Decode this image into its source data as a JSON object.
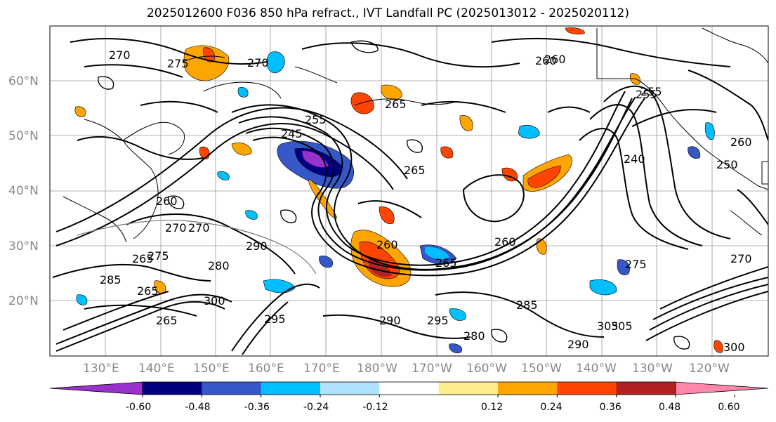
{
  "title": "2025012600 F036 850 hPa refract., IVT Landfall PC (2025013012 - 2025020112)",
  "lat_labels": [
    "60°N",
    "50°N",
    "40°N",
    "30°N",
    "20°N"
  ],
  "lon_labels": [
    "130°E",
    "140°E",
    "150°E",
    "160°E",
    "170°E",
    "180°W",
    "170°W",
    "160°W",
    "150°W",
    "140°W",
    "130°W",
    "120°W"
  ],
  "contour_labels": [
    "270",
    "275",
    "270",
    "260",
    "265",
    "265",
    "255",
    "260",
    "255",
    "245",
    "250",
    "260",
    "265",
    "240",
    "260",
    "270",
    "270",
    "260",
    "265",
    "260",
    "275",
    "280",
    "285",
    "290",
    "295",
    "300",
    "305",
    "285",
    "290",
    "295",
    "265",
    "280",
    "305",
    "290",
    "300",
    "265",
    "270",
    "275",
    "255"
  ],
  "colorbar": {
    "ticks": [
      "-0.60",
      "-0.48",
      "-0.36",
      "-0.24",
      "-0.12",
      "0.12",
      "0.24",
      "0.36",
      "0.48",
      "0.60"
    ],
    "colors": [
      "#9932cc",
      "#000080",
      "#3657c8",
      "#00bfff",
      "#b0e2ff",
      "#ffffff",
      "#ffec8b",
      "#ffa500",
      "#ff4500",
      "#b22222",
      "#ff88aa"
    ]
  }
}
